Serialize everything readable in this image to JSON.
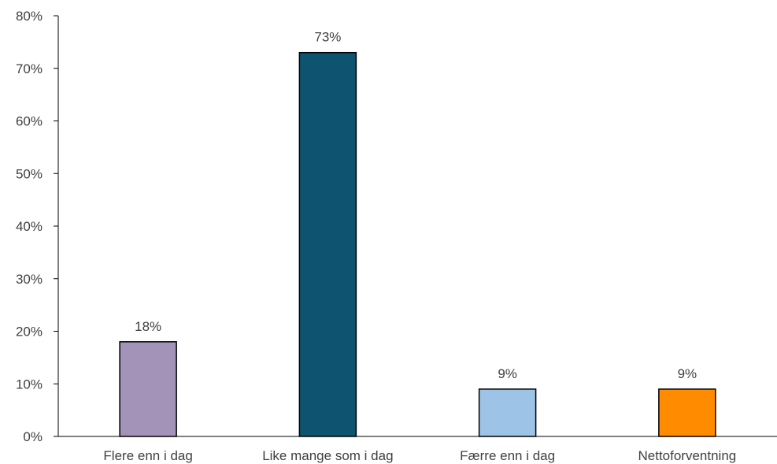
{
  "chart_data": {
    "type": "bar",
    "title": "",
    "xlabel": "",
    "ylabel": "",
    "categories": [
      "Flere enn i dag",
      "Like mange som i dag",
      "Færre enn i dag",
      "Nettoforventning"
    ],
    "values": [
      18,
      73,
      9,
      9
    ],
    "data_labels": [
      "18%",
      "73%",
      "9%",
      "9%"
    ],
    "colors": [
      "#a393b9",
      "#0e5370",
      "#9dc3e6",
      "#ff8c00"
    ],
    "ylim": [
      0,
      80
    ],
    "yticks": [
      0,
      10,
      20,
      30,
      40,
      50,
      60,
      70,
      80
    ],
    "ytick_labels": [
      "0%",
      "10%",
      "20%",
      "30%",
      "40%",
      "50%",
      "60%",
      "70%",
      "80%"
    ],
    "grid": false,
    "legend": "none"
  }
}
